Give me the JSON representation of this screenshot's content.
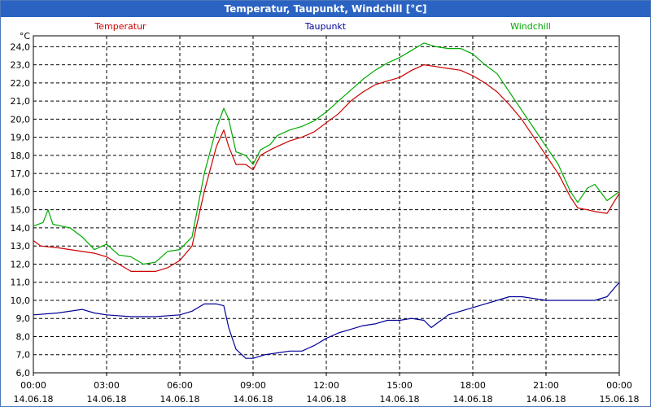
{
  "window": {
    "title": "Temperatur, Taupunkt, Windchill [°C]"
  },
  "chart_data": {
    "type": "line",
    "unit_label": "°C",
    "ylim": [
      6.0,
      24.6
    ],
    "y_ticks": [
      "6,0",
      "7,0",
      "8,0",
      "9,0",
      "10,0",
      "11,0",
      "12,0",
      "13,0",
      "14,0",
      "15,0",
      "16,0",
      "17,0",
      "18,0",
      "19,0",
      "20,0",
      "21,0",
      "22,0",
      "23,0",
      "24,0"
    ],
    "x_range_hours": [
      0,
      24
    ],
    "x_ticks": [
      {
        "time": "00:00",
        "date": "14.06.18",
        "hour": 0
      },
      {
        "time": "03:00",
        "date": "14.06.18",
        "hour": 3
      },
      {
        "time": "06:00",
        "date": "14.06.18",
        "hour": 6
      },
      {
        "time": "09:00",
        "date": "14.06.18",
        "hour": 9
      },
      {
        "time": "12:00",
        "date": "14.06.18",
        "hour": 12
      },
      {
        "time": "15:00",
        "date": "14.06.18",
        "hour": 15
      },
      {
        "time": "18:00",
        "date": "14.06.18",
        "hour": 18
      },
      {
        "time": "21:00",
        "date": "14.06.18",
        "hour": 21
      },
      {
        "time": "00:00",
        "date": "15.06.18",
        "hour": 24
      }
    ],
    "grid": true,
    "series": [
      {
        "name": "Temperatur",
        "color": "#cc0000",
        "points": [
          [
            0,
            13.3
          ],
          [
            0.3,
            13.0
          ],
          [
            1,
            12.9
          ],
          [
            2,
            12.7
          ],
          [
            2.5,
            12.6
          ],
          [
            3,
            12.4
          ],
          [
            3.5,
            12.0
          ],
          [
            4,
            11.6
          ],
          [
            4.5,
            11.6
          ],
          [
            5,
            11.6
          ],
          [
            5.5,
            11.8
          ],
          [
            6,
            12.2
          ],
          [
            6.5,
            13.0
          ],
          [
            7,
            16.0
          ],
          [
            7.5,
            18.5
          ],
          [
            7.8,
            19.4
          ],
          [
            8,
            18.5
          ],
          [
            8.3,
            17.5
          ],
          [
            8.7,
            17.5
          ],
          [
            9,
            17.2
          ],
          [
            9.3,
            18.0
          ],
          [
            9.7,
            18.3
          ],
          [
            10,
            18.5
          ],
          [
            10.5,
            18.8
          ],
          [
            11,
            19.0
          ],
          [
            11.5,
            19.3
          ],
          [
            12,
            19.8
          ],
          [
            12.5,
            20.3
          ],
          [
            13,
            21.0
          ],
          [
            13.5,
            21.5
          ],
          [
            14,
            21.9
          ],
          [
            14.5,
            22.1
          ],
          [
            15,
            22.3
          ],
          [
            15.5,
            22.7
          ],
          [
            16,
            23.0
          ],
          [
            16.5,
            22.9
          ],
          [
            17,
            22.8
          ],
          [
            17.5,
            22.7
          ],
          [
            18,
            22.4
          ],
          [
            18.5,
            22.0
          ],
          [
            19,
            21.5
          ],
          [
            19.5,
            20.8
          ],
          [
            20,
            20.0
          ],
          [
            20.5,
            19.0
          ],
          [
            21,
            18.0
          ],
          [
            21.5,
            17.0
          ],
          [
            22,
            15.7
          ],
          [
            22.3,
            15.1
          ],
          [
            22.7,
            15.0
          ],
          [
            23,
            14.9
          ],
          [
            23.5,
            14.8
          ],
          [
            24,
            15.9
          ]
        ]
      },
      {
        "name": "Taupunkt",
        "color": "#000099",
        "points": [
          [
            0,
            9.2
          ],
          [
            1,
            9.3
          ],
          [
            2,
            9.5
          ],
          [
            2.5,
            9.3
          ],
          [
            3,
            9.2
          ],
          [
            4,
            9.1
          ],
          [
            5,
            9.1
          ],
          [
            6,
            9.2
          ],
          [
            6.5,
            9.4
          ],
          [
            7,
            9.8
          ],
          [
            7.5,
            9.8
          ],
          [
            7.8,
            9.7
          ],
          [
            8,
            8.5
          ],
          [
            8.3,
            7.3
          ],
          [
            8.7,
            6.8
          ],
          [
            9,
            6.8
          ],
          [
            9.5,
            7.0
          ],
          [
            10,
            7.1
          ],
          [
            10.5,
            7.2
          ],
          [
            11,
            7.2
          ],
          [
            11.5,
            7.5
          ],
          [
            12,
            7.9
          ],
          [
            12.5,
            8.2
          ],
          [
            13,
            8.4
          ],
          [
            13.5,
            8.6
          ],
          [
            14,
            8.7
          ],
          [
            14.5,
            8.9
          ],
          [
            15,
            8.9
          ],
          [
            15.5,
            9.0
          ],
          [
            16,
            8.9
          ],
          [
            16.3,
            8.5
          ],
          [
            16.7,
            8.9
          ],
          [
            17,
            9.2
          ],
          [
            17.5,
            9.4
          ],
          [
            18,
            9.6
          ],
          [
            18.5,
            9.8
          ],
          [
            19,
            10.0
          ],
          [
            19.5,
            10.2
          ],
          [
            20,
            10.2
          ],
          [
            20.5,
            10.1
          ],
          [
            21,
            10.0
          ],
          [
            21.5,
            10.0
          ],
          [
            22,
            10.0
          ],
          [
            22.5,
            10.0
          ],
          [
            23,
            10.0
          ],
          [
            23.5,
            10.2
          ],
          [
            24,
            11.0
          ]
        ]
      },
      {
        "name": "Windchill",
        "color": "#00aa00",
        "points": [
          [
            0,
            14.1
          ],
          [
            0.4,
            14.3
          ],
          [
            0.6,
            15.0
          ],
          [
            0.8,
            14.2
          ],
          [
            1.5,
            14.0
          ],
          [
            2,
            13.5
          ],
          [
            2.5,
            12.8
          ],
          [
            3,
            13.1
          ],
          [
            3.5,
            12.5
          ],
          [
            4,
            12.4
          ],
          [
            4.5,
            12.0
          ],
          [
            5,
            12.1
          ],
          [
            5.5,
            12.7
          ],
          [
            6,
            12.8
          ],
          [
            6.5,
            13.5
          ],
          [
            7,
            17.0
          ],
          [
            7.5,
            19.5
          ],
          [
            7.8,
            20.6
          ],
          [
            8,
            20.0
          ],
          [
            8.3,
            18.2
          ],
          [
            8.7,
            18.0
          ],
          [
            9,
            17.5
          ],
          [
            9.3,
            18.3
          ],
          [
            9.7,
            18.6
          ],
          [
            10,
            19.1
          ],
          [
            10.5,
            19.4
          ],
          [
            11,
            19.6
          ],
          [
            11.5,
            19.9
          ],
          [
            12,
            20.4
          ],
          [
            12.5,
            21.0
          ],
          [
            13,
            21.6
          ],
          [
            13.5,
            22.2
          ],
          [
            14,
            22.7
          ],
          [
            14.5,
            23.1
          ],
          [
            15,
            23.4
          ],
          [
            15.5,
            23.8
          ],
          [
            16,
            24.2
          ],
          [
            16.5,
            24.0
          ],
          [
            17,
            23.9
          ],
          [
            17.5,
            23.9
          ],
          [
            18,
            23.6
          ],
          [
            18.5,
            23.0
          ],
          [
            19,
            22.5
          ],
          [
            19.5,
            21.5
          ],
          [
            20,
            20.5
          ],
          [
            20.5,
            19.5
          ],
          [
            21,
            18.5
          ],
          [
            21.5,
            17.5
          ],
          [
            22,
            16.0
          ],
          [
            22.3,
            15.4
          ],
          [
            22.7,
            16.2
          ],
          [
            23,
            16.4
          ],
          [
            23.5,
            15.5
          ],
          [
            24,
            16.0
          ]
        ]
      }
    ]
  }
}
